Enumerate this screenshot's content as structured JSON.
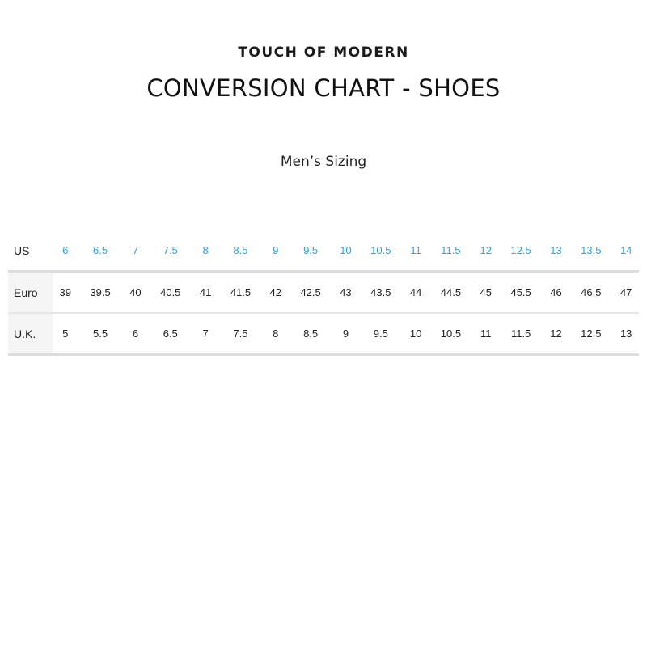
{
  "brand": "TOUCH OF MODERN",
  "title": "CONVERSION CHART - SHOES",
  "subtitle": "Men’s Sizing",
  "colors": {
    "us_sizes": "#29a3e0",
    "label_bg": "#f5f5f5",
    "rule": "#dddddd"
  },
  "table": {
    "rows": [
      {
        "label": "US",
        "values": [
          "6",
          "6.5",
          "7",
          "7.5",
          "8",
          "8.5",
          "9",
          "9.5",
          "10",
          "10.5",
          "11",
          "11.5",
          "12",
          "12.5",
          "13",
          "13.5",
          "14"
        ]
      },
      {
        "label": "Euro",
        "values": [
          "39",
          "39.5",
          "40",
          "40.5",
          "41",
          "41.5",
          "42",
          "42.5",
          "43",
          "43.5",
          "44",
          "44.5",
          "45",
          "45.5",
          "46",
          "46.5",
          "47"
        ]
      },
      {
        "label": "U.K.",
        "values": [
          "5",
          "5.5",
          "6",
          "6.5",
          "7",
          "7.5",
          "8",
          "8.5",
          "9",
          "9.5",
          "10",
          "10.5",
          "11",
          "11.5",
          "12",
          "12.5",
          "13"
        ]
      }
    ]
  }
}
